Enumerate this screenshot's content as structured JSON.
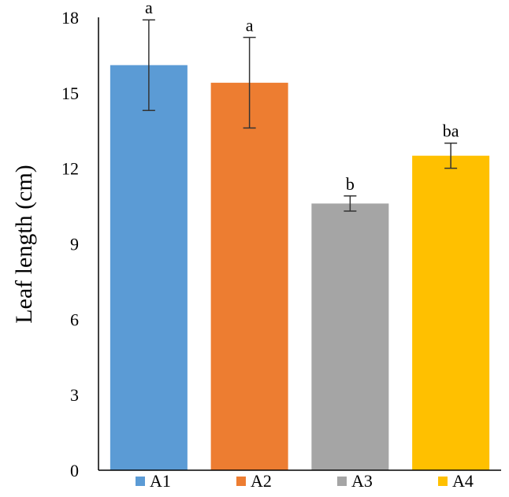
{
  "chart_data": {
    "type": "bar",
    "title": "",
    "xlabel": "",
    "ylabel": "Leaf length (cm)",
    "ylim": [
      0,
      18
    ],
    "yticks": [
      "0",
      "3",
      "6",
      "9",
      "12",
      "15",
      "18"
    ],
    "grid": false,
    "legend_position": "bottom",
    "categories": [
      "A1",
      "A2",
      "A3",
      "A4"
    ],
    "values": [
      16.1,
      15.4,
      10.6,
      12.5
    ],
    "errors": [
      1.8,
      1.8,
      0.3,
      0.5
    ],
    "significance": [
      "a",
      "a",
      "b",
      "ba"
    ],
    "colors": [
      "#5b9bd5",
      "#ed7d31",
      "#a5a5a5",
      "#ffc000"
    ]
  }
}
